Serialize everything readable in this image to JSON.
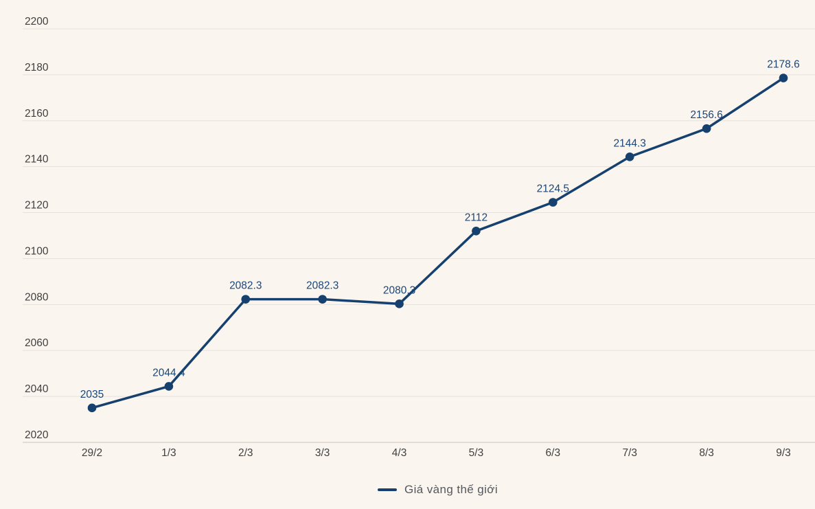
{
  "background_color": "#faf5ef",
  "chart_data": {
    "type": "line",
    "title": "",
    "categories": [
      "29/2",
      "1/3",
      "2/3",
      "3/3",
      "4/3",
      "5/3",
      "6/3",
      "7/3",
      "8/3",
      "9/3"
    ],
    "series": [
      {
        "name": "Giá vàng thế giới",
        "color": "#16406e",
        "values": [
          2035,
          2044.4,
          2082.3,
          2082.3,
          2080.3,
          2112,
          2124.5,
          2144.3,
          2156.6,
          2178.6
        ],
        "point_labels": [
          "2035",
          "2044.4",
          "2082.3",
          "2082.3",
          "2080.3",
          "2112",
          "2124.5",
          "2144.3",
          "2156.6",
          "2178.6"
        ]
      }
    ],
    "xlabel": "",
    "ylabel": "",
    "ylim": [
      2020,
      2200
    ],
    "y_ticks": [
      2020,
      2040,
      2060,
      2080,
      2100,
      2120,
      2140,
      2160,
      2180,
      2200
    ],
    "grid": "horizontal",
    "legend_position": "bottom",
    "grid_color": "#e6e1da",
    "axis_line_color": "#ccc5bd",
    "tick_label_color": "#3f3f3f",
    "value_label_color": "#1b4678",
    "legend_text_color": "#54585d"
  }
}
